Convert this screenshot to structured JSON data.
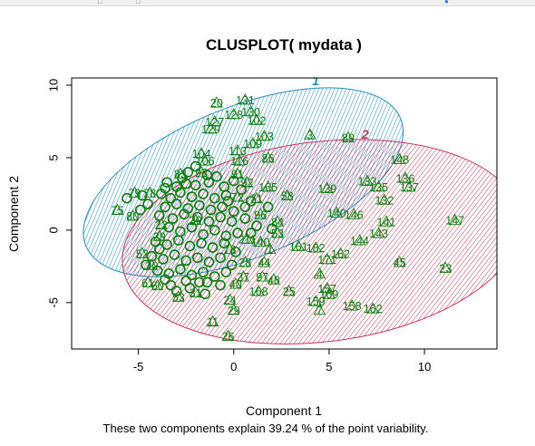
{
  "chart_data": {
    "type": "scatter",
    "title": "CLUSPLOT( mydata )",
    "xlabel": "Component 1",
    "ylabel": "Component 2",
    "caption": "These two components explain 39.24 % of the point variability.",
    "xlim": [
      -8.5,
      13.8
    ],
    "ylim": [
      -8.2,
      10.5
    ],
    "xticks": [
      -5,
      0,
      5,
      10
    ],
    "yticks": [
      -5,
      0,
      5,
      10
    ],
    "grid": false,
    "clusters": [
      {
        "name": "1",
        "color": "#1f8fc7",
        "center": [
          0.5,
          3.3
        ],
        "rx": 8.9,
        "ry": 5.2,
        "angle_deg": 22
      },
      {
        "name": "2",
        "color": "#c9355e",
        "center": [
          4.6,
          -0.8
        ],
        "rx": 10.5,
        "ry": 6.9,
        "angle_deg": 7
      }
    ],
    "point_color": "#0a7d0a",
    "points": [
      {
        "label": "20",
        "x": -0.9,
        "y": 8.8
      },
      {
        "label": "131",
        "x": 0.6,
        "y": 9.0
      },
      {
        "label": "127",
        "x": -1.0,
        "y": 7.5
      },
      {
        "label": "128",
        "x": 0.0,
        "y": 8.0
      },
      {
        "label": "130",
        "x": 0.9,
        "y": 8.2
      },
      {
        "label": "129",
        "x": -1.2,
        "y": 7.0
      },
      {
        "label": "102",
        "x": 1.2,
        "y": 7.6
      },
      {
        "label": "103",
        "x": 1.6,
        "y": 6.5
      },
      {
        "label": "109",
        "x": 1.0,
        "y": 6.0
      },
      {
        "label": "113",
        "x": 0.2,
        "y": 5.5
      },
      {
        "label": "116",
        "x": 0.3,
        "y": 4.8
      },
      {
        "label": "86",
        "x": 1.8,
        "y": 5.0
      },
      {
        "label": "104",
        "x": -1.7,
        "y": 5.3
      },
      {
        "label": "106",
        "x": -1.5,
        "y": 4.8
      },
      {
        "label": "3",
        "x": 4.0,
        "y": 6.6
      },
      {
        "label": "89",
        "x": 6.0,
        "y": 6.4
      },
      {
        "label": "148",
        "x": 8.7,
        "y": 4.9
      },
      {
        "label": "136",
        "x": 9.0,
        "y": 3.6
      },
      {
        "label": "133",
        "x": 7.0,
        "y": 3.4
      },
      {
        "label": "135",
        "x": 7.6,
        "y": 3.0
      },
      {
        "label": "137",
        "x": 9.2,
        "y": 3.0
      },
      {
        "label": "132",
        "x": 7.9,
        "y": 2.1
      },
      {
        "label": "139",
        "x": 4.9,
        "y": 2.9
      },
      {
        "label": "165",
        "x": 1.8,
        "y": 3.0
      },
      {
        "label": "58",
        "x": 2.8,
        "y": 2.4
      },
      {
        "label": "140",
        "x": 5.4,
        "y": 1.2
      },
      {
        "label": "146",
        "x": 6.3,
        "y": 1.1
      },
      {
        "label": "141",
        "x": 8.0,
        "y": 0.6
      },
      {
        "label": "143",
        "x": 7.6,
        "y": -0.2
      },
      {
        "label": "144",
        "x": 6.6,
        "y": -0.7
      },
      {
        "label": "147",
        "x": 11.6,
        "y": 0.7
      },
      {
        "label": "45",
        "x": 8.7,
        "y": -2.2
      },
      {
        "label": "23",
        "x": 11.1,
        "y": -2.6
      },
      {
        "label": "161",
        "x": 3.4,
        "y": -1.1
      },
      {
        "label": "182",
        "x": 4.3,
        "y": -1.2
      },
      {
        "label": "171",
        "x": 4.9,
        "y": -2.0
      },
      {
        "label": "162",
        "x": 5.6,
        "y": -1.6
      },
      {
        "label": "4",
        "x": 4.5,
        "y": -3.0
      },
      {
        "label": "25",
        "x": 2.9,
        "y": -4.2
      },
      {
        "label": "157",
        "x": 4.9,
        "y": -4.0
      },
      {
        "label": "169",
        "x": 5.0,
        "y": -4.4
      },
      {
        "label": "159",
        "x": 4.3,
        "y": -4.9
      },
      {
        "label": "7",
        "x": 4.5,
        "y": -5.5
      },
      {
        "label": "158",
        "x": 6.2,
        "y": -5.2
      },
      {
        "label": "162",
        "x": 7.3,
        "y": -5.4
      },
      {
        "label": "79",
        "x": -5.2,
        "y": 2.6
      },
      {
        "label": "78",
        "x": -4.4,
        "y": 2.6
      },
      {
        "label": "75",
        "x": -6.1,
        "y": 1.4
      },
      {
        "label": "80",
        "x": -5.3,
        "y": 1.0
      },
      {
        "label": "83",
        "x": -2.8,
        "y": 3.9
      },
      {
        "label": "93",
        "x": -1.7,
        "y": 4.0
      },
      {
        "label": "91",
        "x": 0.2,
        "y": 3.9
      },
      {
        "label": "92",
        "x": 0.7,
        "y": 3.3
      },
      {
        "label": "72",
        "x": 0.2,
        "y": 2.3
      },
      {
        "label": "71",
        "x": 1.2,
        "y": 2.2
      },
      {
        "label": "96",
        "x": 1.4,
        "y": 1.1
      },
      {
        "label": "84",
        "x": 2.3,
        "y": 0.6
      },
      {
        "label": "53",
        "x": 2.3,
        "y": -0.2
      },
      {
        "label": "211",
        "x": 0.7,
        "y": -0.6
      },
      {
        "label": "140",
        "x": 1.4,
        "y": -0.8
      },
      {
        "label": "1",
        "x": 1.9,
        "y": -1.3
      },
      {
        "label": "22",
        "x": -3.8,
        "y": 0.4
      },
      {
        "label": "39",
        "x": -2.0,
        "y": 0.7
      },
      {
        "label": "29",
        "x": -3.9,
        "y": -0.4
      },
      {
        "label": "52",
        "x": -4.8,
        "y": -1.6
      },
      {
        "label": "10",
        "x": -4.3,
        "y": -2.4
      },
      {
        "label": "73",
        "x": -0.2,
        "y": -1.3
      },
      {
        "label": "28",
        "x": 0.6,
        "y": -2.2
      },
      {
        "label": "44",
        "x": 1.6,
        "y": -2.2
      },
      {
        "label": "37",
        "x": 0.5,
        "y": -3.2
      },
      {
        "label": "97",
        "x": 1.5,
        "y": -3.2
      },
      {
        "label": "48",
        "x": 2.1,
        "y": -3.4
      },
      {
        "label": "40",
        "x": 0.1,
        "y": -3.7
      },
      {
        "label": "168",
        "x": 1.3,
        "y": -4.2
      },
      {
        "label": "61",
        "x": -4.5,
        "y": -3.6
      },
      {
        "label": "60",
        "x": -4.0,
        "y": -3.8
      },
      {
        "label": "53",
        "x": -2.9,
        "y": -4.6
      },
      {
        "label": "31",
        "x": -2.0,
        "y": -4.3
      },
      {
        "label": "24",
        "x": -0.2,
        "y": -4.8
      },
      {
        "label": "29",
        "x": 0.0,
        "y": -5.5
      },
      {
        "label": "11",
        "x": -1.1,
        "y": -6.3
      },
      {
        "label": "26",
        "x": -0.3,
        "y": -7.3
      }
    ],
    "dense_region_points": [
      [
        -3.5,
        3.3
      ],
      [
        -3.0,
        3.0
      ],
      [
        -2.5,
        3.2
      ],
      [
        -2.0,
        3.1
      ],
      [
        -1.3,
        3.3
      ],
      [
        -0.5,
        3.0
      ],
      [
        0.0,
        3.4
      ],
      [
        -3.8,
        2.5
      ],
      [
        -3.3,
        2.2
      ],
      [
        -2.8,
        2.6
      ],
      [
        -2.2,
        2.3
      ],
      [
        -1.6,
        2.5
      ],
      [
        -1.0,
        2.2
      ],
      [
        -0.4,
        2.4
      ],
      [
        0.4,
        2.8
      ],
      [
        -4.5,
        1.8
      ],
      [
        -3.6,
        1.6
      ],
      [
        -3.0,
        1.8
      ],
      [
        -2.4,
        1.5
      ],
      [
        -1.8,
        1.7
      ],
      [
        -1.2,
        1.4
      ],
      [
        -0.6,
        1.6
      ],
      [
        0.0,
        1.3
      ],
      [
        0.6,
        1.6
      ],
      [
        -3.9,
        1.0
      ],
      [
        -3.2,
        0.8
      ],
      [
        -2.6,
        1.1
      ],
      [
        -1.9,
        0.9
      ],
      [
        -1.3,
        0.6
      ],
      [
        -0.7,
        0.9
      ],
      [
        -0.1,
        0.6
      ],
      [
        0.6,
        0.8
      ],
      [
        1.2,
        0.3
      ],
      [
        -3.4,
        0.2
      ],
      [
        -2.8,
        -0.1
      ],
      [
        -2.2,
        0.2
      ],
      [
        -1.6,
        -0.3
      ],
      [
        -1.0,
        0.0
      ],
      [
        -0.4,
        -0.4
      ],
      [
        0.2,
        -0.2
      ],
      [
        -4.1,
        -0.8
      ],
      [
        -3.5,
        -1.0
      ],
      [
        -2.9,
        -0.7
      ],
      [
        -2.3,
        -1.1
      ],
      [
        -1.7,
        -0.9
      ],
      [
        -1.1,
        -1.2
      ],
      [
        -0.5,
        -0.9
      ],
      [
        0.1,
        -1.5
      ],
      [
        -4.3,
        -1.8
      ],
      [
        -3.7,
        -2.0
      ],
      [
        -3.1,
        -1.7
      ],
      [
        -2.5,
        -2.1
      ],
      [
        -1.9,
        -1.9
      ],
      [
        -1.3,
        -2.2
      ],
      [
        -0.7,
        -1.9
      ],
      [
        -0.1,
        -2.4
      ],
      [
        -4.0,
        -2.8
      ],
      [
        -3.4,
        -3.0
      ],
      [
        -2.8,
        -2.7
      ],
      [
        -2.2,
        -3.1
      ],
      [
        -1.6,
        -2.9
      ],
      [
        -1.0,
        -3.2
      ],
      [
        -0.4,
        -2.9
      ],
      [
        -3.6,
        -3.4
      ],
      [
        -2.5,
        -3.5
      ],
      [
        -1.4,
        -3.6
      ],
      [
        -0.7,
        -3.8
      ],
      [
        -3.0,
        -4.2
      ],
      [
        -2.3,
        -4.0
      ],
      [
        -1.5,
        -4.4
      ],
      [
        0.9,
        2.0
      ],
      [
        1.8,
        1.6
      ],
      [
        2.0,
        0.1
      ],
      [
        0.9,
        -0.2
      ],
      [
        -4.8,
        2.4
      ],
      [
        -5.6,
        2.2
      ],
      [
        -4.9,
        1.4
      ],
      [
        -2.0,
        4.4
      ],
      [
        -1.4,
        3.8
      ],
      [
        -2.4,
        4.0
      ],
      [
        -2.7,
        3.6
      ],
      [
        -3.6,
        2.9
      ],
      [
        -0.9,
        3.7
      ],
      [
        -0.3,
        2.0
      ],
      [
        -4.6,
        -2.4
      ],
      [
        -3.9,
        -1.3
      ],
      [
        -1.8,
        -3.6
      ],
      [
        -3.3,
        -3.8
      ]
    ]
  }
}
